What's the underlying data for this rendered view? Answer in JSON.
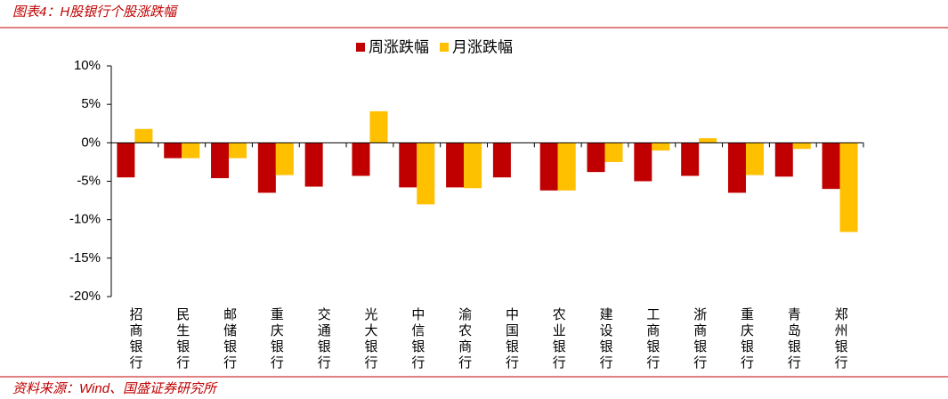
{
  "chart_data": {
    "type": "bar",
    "title": "图表4：H股银行个股涨跌幅",
    "source": "资料来源：Wind、国盛证券研究所",
    "categories": [
      "招商银行",
      "民生银行",
      "邮储银行",
      "重庆银行",
      "交通银行",
      "光大银行",
      "中信银行",
      "渝农商行",
      "中国银行",
      "农业银行",
      "建设银行",
      "工商银行",
      "浙商银行",
      "重庆银行",
      "青岛银行",
      "郑州银行"
    ],
    "series": [
      {
        "name": "周涨跌幅",
        "color": "#c00000",
        "values": [
          -4.5,
          -2.0,
          -4.6,
          -6.5,
          -5.7,
          -4.3,
          -5.8,
          -5.8,
          -4.5,
          -6.2,
          -3.8,
          -5.0,
          -4.3,
          -6.5,
          -4.4,
          -6.0
        ]
      },
      {
        "name": "月涨跌幅",
        "color": "#ffc000",
        "values": [
          1.8,
          -2.0,
          -2.0,
          -4.2,
          null,
          4.1,
          -8.0,
          -5.9,
          null,
          -6.2,
          -2.5,
          -1.0,
          0.6,
          -4.2,
          -0.8,
          -11.6
        ]
      }
    ],
    "ylim": [
      -20,
      10
    ],
    "yticks": [
      {
        "value": -20,
        "label": "-20%"
      },
      {
        "value": -15,
        "label": "-15%"
      },
      {
        "value": -10,
        "label": "-10%"
      },
      {
        "value": -5,
        "label": "-5%"
      },
      {
        "value": 0,
        "label": "0%"
      },
      {
        "value": 5,
        "label": "5%"
      },
      {
        "value": 10,
        "label": "10%"
      }
    ],
    "legend": "top"
  }
}
